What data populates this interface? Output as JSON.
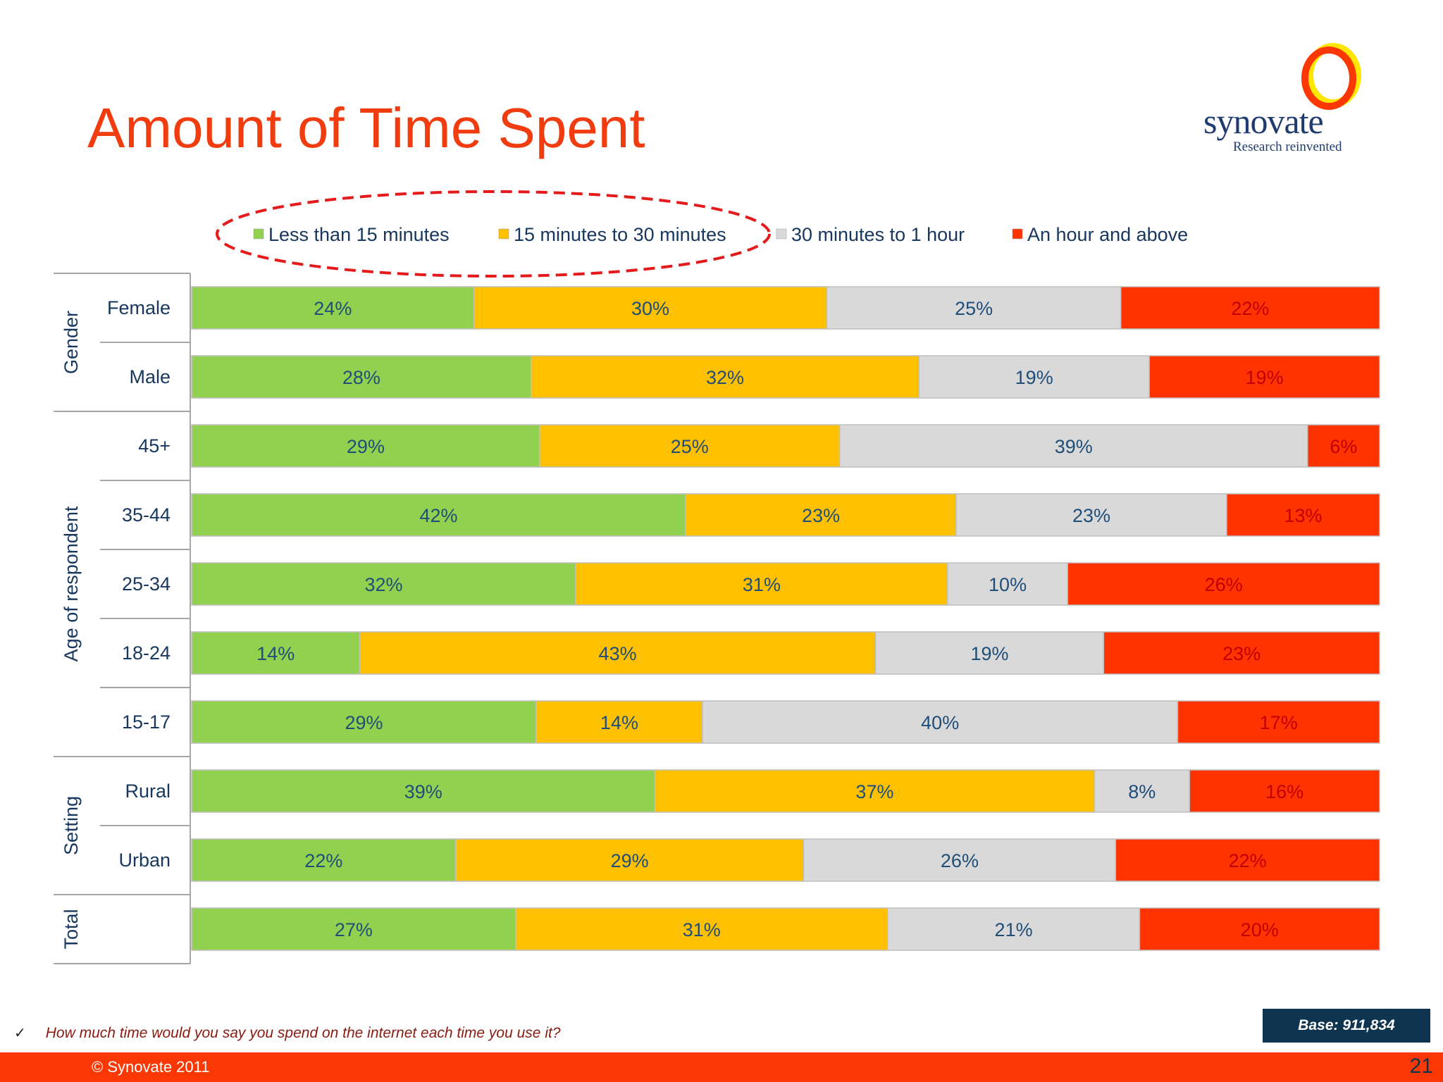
{
  "slide": {
    "title": "Amount of Time Spent",
    "logo_name": "synovate",
    "logo_tagline": "Research reinvented",
    "question_mark": "✓",
    "question": "How much time would you say you spend on the internet each time you use it?",
    "base": "Base: 911,834",
    "copyright": "© Synovate 2011",
    "page_number": "21"
  },
  "chart_data": {
    "type": "bar",
    "orientation": "horizontal",
    "stacked": "100%",
    "title": "",
    "legend_position": "top",
    "legend_highlight": "dashed red ellipse around first two legend entries",
    "groups": [
      {
        "label": "Gender",
        "categories": [
          "Female",
          "Male"
        ]
      },
      {
        "label": "Age of respondent",
        "categories": [
          "45+",
          "35-44",
          "25-34",
          "18-24",
          "15-17"
        ]
      },
      {
        "label": "Setting",
        "categories": [
          "Rural",
          "Urban"
        ]
      },
      {
        "label": "Total",
        "categories": [
          ""
        ]
      }
    ],
    "categories": [
      "Female",
      "Male",
      "45+",
      "35-44",
      "25-34",
      "18-24",
      "15-17",
      "Rural",
      "Urban",
      ""
    ],
    "series": [
      {
        "name": "Less than 15 minutes",
        "color": "#92d050",
        "values": [
          24,
          28,
          29,
          42,
          32,
          14,
          29,
          39,
          22,
          27
        ]
      },
      {
        "name": "15 minutes to 30 minutes",
        "color": "#ffc000",
        "values": [
          30,
          32,
          25,
          23,
          31,
          43,
          14,
          37,
          29,
          31
        ]
      },
      {
        "name": "30 minutes to 1 hour",
        "color": "#d9d9d9",
        "values": [
          25,
          19,
          39,
          23,
          10,
          19,
          40,
          8,
          26,
          21
        ]
      },
      {
        "name": "An hour and above",
        "color": "#ff3300",
        "values": [
          22,
          19,
          6,
          13,
          26,
          23,
          17,
          16,
          22,
          20
        ]
      }
    ],
    "label_format": "{v}%",
    "label_color": "#1f4e79",
    "last_series_label_color": "#c00000"
  }
}
